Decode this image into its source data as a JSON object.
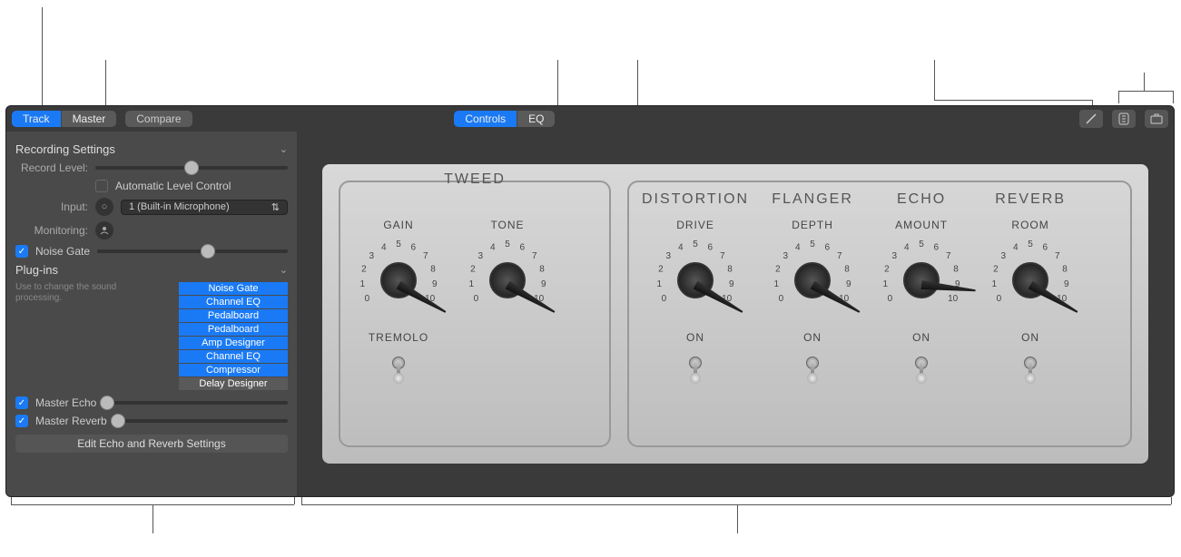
{
  "colors": {
    "accent": "#1a7af5",
    "window_bg": "#3a3a3a",
    "sidebar_bg": "#4a4a4a",
    "panel_bg_top": "#d8d8d8",
    "panel_bg_bot": "#bcbcbc",
    "text_light": "#ccc",
    "text_muted": "#888",
    "knob_text": "#444"
  },
  "toolbar": {
    "segments_left": {
      "track": "Track",
      "master": "Master"
    },
    "compare": "Compare",
    "segments_center": {
      "controls": "Controls",
      "eq": "EQ"
    },
    "active_left": "track",
    "active_center": "controls"
  },
  "sidebar": {
    "recording": {
      "header": "Recording Settings",
      "record_level_label": "Record Level:",
      "record_level_pct": 50,
      "auto_level_label": "Automatic Level Control",
      "auto_level_checked": false,
      "input_label": "Input:",
      "input_value": "1  (Built-in Microphone)",
      "monitoring_label": "Monitoring:"
    },
    "noise_gate": {
      "label": "Noise Gate",
      "checked": true,
      "value_pct": 58
    },
    "plugins": {
      "header": "Plug-ins",
      "hint": "Use to change the sound processing.",
      "items": [
        {
          "name": "Noise Gate",
          "active": true
        },
        {
          "name": "Channel EQ",
          "active": true
        },
        {
          "name": "Pedalboard",
          "active": true
        },
        {
          "name": "Amp Designer",
          "active": true
        },
        {
          "name": "Channel EQ",
          "active": true
        },
        {
          "name": "Compressor",
          "active": true
        },
        {
          "name": "Delay Designer",
          "active": false
        }
      ]
    },
    "master_echo": {
      "label": "Master Echo",
      "checked": true,
      "value_pct": 2
    },
    "master_reverb": {
      "label": "Master Reverb",
      "checked": true,
      "value_pct": 2
    },
    "edit_button": "Edit Echo and Reverb Settings"
  },
  "amp": {
    "tick_labels": [
      "0",
      "1",
      "2",
      "3",
      "4",
      "5",
      "6",
      "7",
      "8",
      "9",
      "10"
    ],
    "tick_fontsize": 10,
    "title_fontsize": 16,
    "label_fontsize": 12,
    "knob_angle_start_deg": 210,
    "knob_angle_end_deg": -30,
    "tweed": {
      "title": "TWEED",
      "knobs": [
        {
          "label": "GAIN",
          "value": 10,
          "min": 0,
          "max": 10
        },
        {
          "label": "TONE",
          "value": 10,
          "min": 0,
          "max": 10
        }
      ],
      "toggle": {
        "label": "TREMOLO",
        "on": false
      }
    },
    "effects": [
      {
        "title": "DISTORTION",
        "knob": {
          "label": "DRIVE",
          "value": 10,
          "min": 0,
          "max": 10
        },
        "toggle": {
          "label": "ON",
          "on": false
        }
      },
      {
        "title": "FLANGER",
        "knob": {
          "label": "DEPTH",
          "value": 10,
          "min": 0,
          "max": 10
        },
        "toggle": {
          "label": "ON",
          "on": false
        }
      },
      {
        "title": "ECHO",
        "knob": {
          "label": "AMOUNT",
          "value": 9,
          "min": 0,
          "max": 10
        },
        "toggle": {
          "label": "ON",
          "on": false
        }
      },
      {
        "title": "REVERB",
        "knob": {
          "label": "ROOM",
          "value": 10,
          "min": 0,
          "max": 10
        },
        "toggle": {
          "label": "ON",
          "on": false
        }
      }
    ]
  }
}
